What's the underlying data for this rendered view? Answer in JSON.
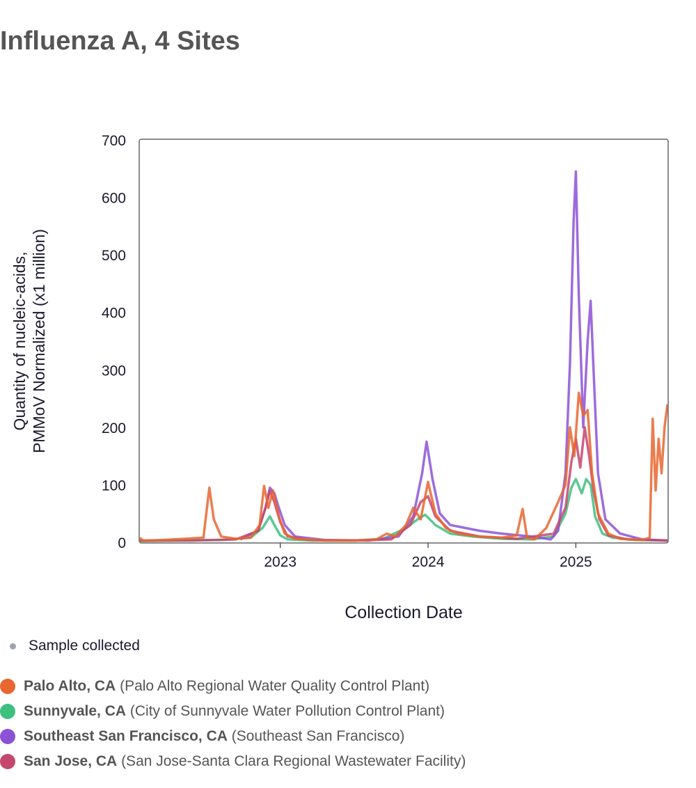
{
  "title": "Influenza A, 4 Sites",
  "chart_data": {
    "type": "line",
    "title": "Influenza A, 4 Sites",
    "xlabel": "Collection Date",
    "ylabel_lines": [
      "Quantity of nucleic-acids,",
      "PMMoV Normalized (x1 million)"
    ],
    "xlim": [
      2022.05,
      2025.62
    ],
    "ylim": [
      0,
      700
    ],
    "x_ticks": [
      2023,
      2024,
      2025
    ],
    "x_tick_labels": [
      "2023",
      "2024",
      "2025"
    ],
    "y_ticks": [
      0,
      100,
      200,
      300,
      400,
      500,
      600,
      700
    ],
    "y_tick_labels": [
      "0",
      "100",
      "200",
      "300",
      "400",
      "500",
      "600",
      "700"
    ],
    "series": [
      {
        "name": "Sunnyvale, CA",
        "color": "#3dbf7e",
        "x": [
          2022.05,
          2022.3,
          2022.6,
          2022.8,
          2022.88,
          2022.93,
          2022.96,
          2023.0,
          2023.05,
          2023.2,
          2023.5,
          2023.7,
          2023.85,
          2023.93,
          2023.98,
          2024.05,
          2024.15,
          2024.3,
          2024.5,
          2024.7,
          2024.85,
          2024.93,
          2024.97,
          2025.0,
          2025.04,
          2025.07,
          2025.1,
          2025.13,
          2025.18,
          2025.25,
          2025.4,
          2025.62
        ],
        "values": [
          2,
          3,
          4,
          8,
          25,
          45,
          30,
          12,
          5,
          3,
          3,
          6,
          25,
          40,
          48,
          30,
          15,
          10,
          6,
          5,
          10,
          50,
          95,
          110,
          85,
          110,
          100,
          45,
          15,
          8,
          4,
          3
        ]
      },
      {
        "name": "Southeast San Francisco, CA",
        "color": "#8c52d6",
        "x": [
          2022.73,
          2022.85,
          2022.9,
          2022.93,
          2022.96,
          2022.99,
          2023.03,
          2023.1,
          2023.3,
          2023.6,
          2023.8,
          2023.9,
          2023.96,
          2023.99,
          2024.03,
          2024.08,
          2024.15,
          2024.25,
          2024.35,
          2024.5,
          2024.7,
          2024.83,
          2024.88,
          2024.93,
          2024.96,
          2024.985,
          2025.0,
          2025.02,
          2025.05,
          2025.08,
          2025.1,
          2025.12,
          2025.15,
          2025.2,
          2025.3,
          2025.45,
          2025.62
        ],
        "values": [
          5,
          20,
          60,
          95,
          85,
          60,
          30,
          10,
          4,
          3,
          10,
          45,
          120,
          175,
          110,
          50,
          30,
          25,
          20,
          15,
          10,
          5,
          20,
          120,
          310,
          560,
          645,
          430,
          200,
          350,
          420,
          300,
          120,
          40,
          15,
          5,
          3
        ]
      },
      {
        "name": "San Jose, CA",
        "color": "#c4476e",
        "x": [
          2022.05,
          2022.4,
          2022.7,
          2022.85,
          2022.9,
          2022.93,
          2022.96,
          2023.0,
          2023.05,
          2023.2,
          2023.5,
          2023.75,
          2023.88,
          2023.95,
          2024.0,
          2024.05,
          2024.15,
          2024.35,
          2024.6,
          2024.85,
          2024.93,
          2024.97,
          2025.0,
          2025.03,
          2025.06,
          2025.09,
          2025.12,
          2025.16,
          2025.22,
          2025.35,
          2025.62
        ],
        "values": [
          3,
          3,
          5,
          20,
          60,
          90,
          70,
          35,
          10,
          4,
          3,
          5,
          30,
          70,
          80,
          45,
          20,
          10,
          6,
          15,
          60,
          140,
          180,
          130,
          200,
          150,
          90,
          40,
          12,
          5,
          3
        ]
      },
      {
        "name": "Palo Alto, CA",
        "color": "#e86630",
        "x": [
          2022.05,
          2022.07,
          2022.1,
          2022.2,
          2022.35,
          2022.48,
          2022.52,
          2022.55,
          2022.6,
          2022.7,
          2022.8,
          2022.86,
          2022.89,
          2022.92,
          2022.95,
          2022.99,
          2023.03,
          2023.1,
          2023.3,
          2023.5,
          2023.65,
          2023.72,
          2023.78,
          2023.85,
          2023.9,
          2023.95,
          2024.0,
          2024.05,
          2024.12,
          2024.2,
          2024.35,
          2024.5,
          2024.6,
          2024.64,
          2024.67,
          2024.72,
          2024.8,
          2024.88,
          2024.93,
          2024.96,
          2024.99,
          2025.02,
          2025.05,
          2025.08,
          2025.11,
          2025.15,
          2025.22,
          2025.3,
          2025.45,
          2025.5,
          2025.52,
          2025.54,
          2025.56,
          2025.58,
          2025.6,
          2025.62
        ],
        "values": [
          8,
          3,
          3,
          4,
          6,
          8,
          95,
          40,
          10,
          6,
          8,
          30,
          98,
          60,
          90,
          45,
          15,
          6,
          3,
          3,
          5,
          15,
          10,
          30,
          60,
          40,
          105,
          50,
          25,
          15,
          10,
          8,
          12,
          58,
          8,
          5,
          25,
          70,
          100,
          200,
          150,
          260,
          220,
          230,
          120,
          50,
          15,
          6,
          4,
          8,
          215,
          90,
          180,
          120,
          200,
          240
        ]
      }
    ],
    "legend": {
      "sample_label": "Sample collected",
      "items": [
        {
          "name": "Palo Alto, CA",
          "detail": "(Palo Alto Regional Water Quality Control Plant)",
          "color": "#e86630"
        },
        {
          "name": "Sunnyvale, CA",
          "detail": "(City of Sunnyvale Water Pollution Control Plant)",
          "color": "#3dbf7e"
        },
        {
          "name": "Southeast San Francisco, CA",
          "detail": "(Southeast San Francisco)",
          "color": "#8c52d6"
        },
        {
          "name": "San Jose, CA",
          "detail": "(San Jose-Santa Clara Regional Wastewater Facility)",
          "color": "#c4476e"
        }
      ]
    }
  }
}
